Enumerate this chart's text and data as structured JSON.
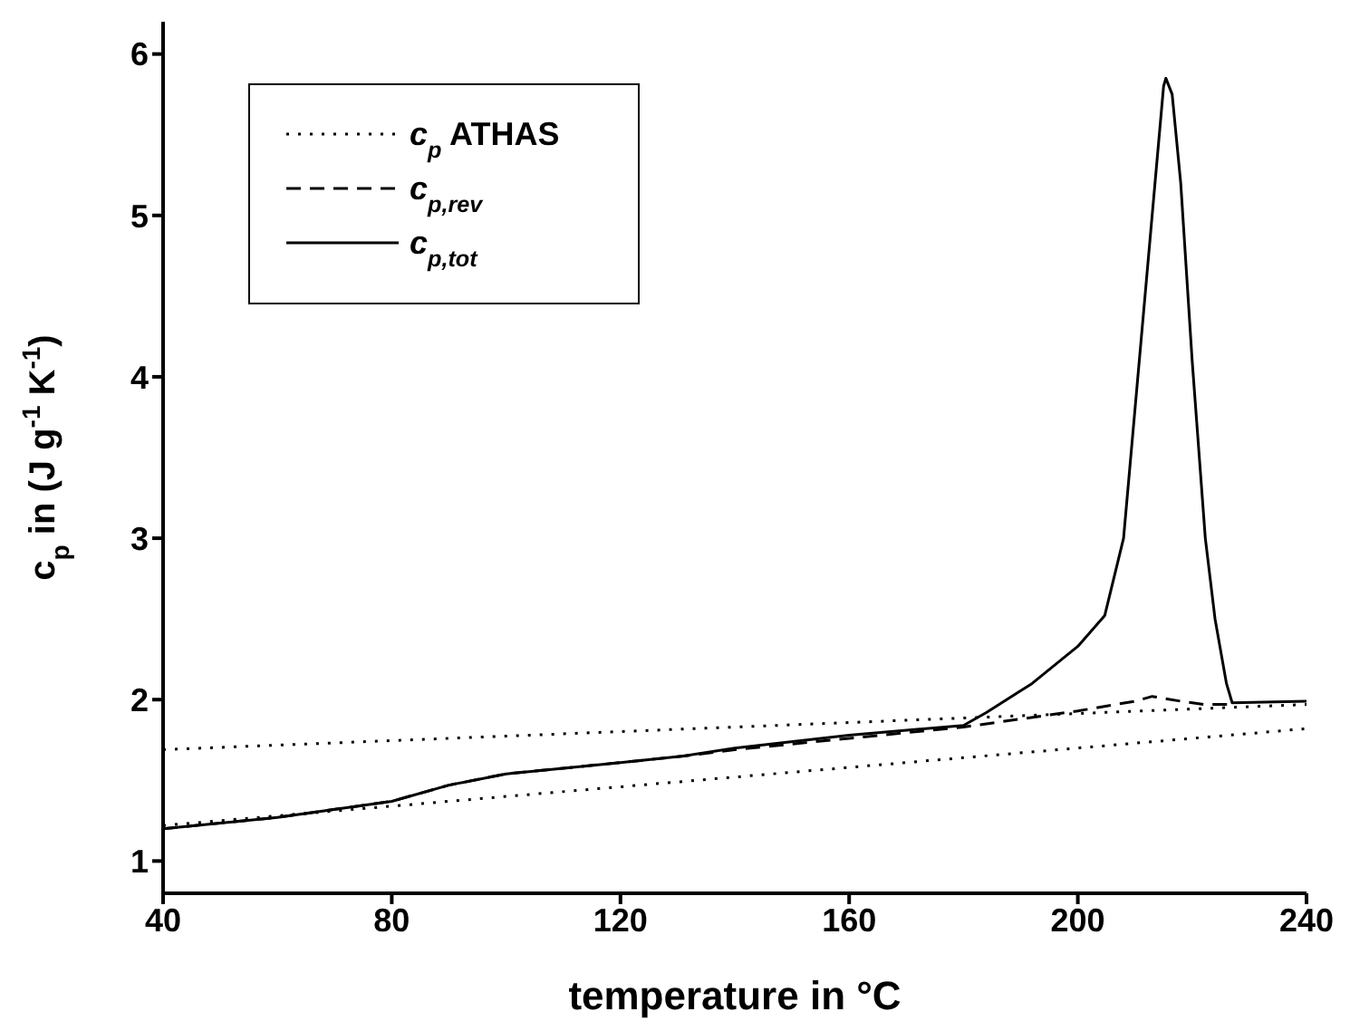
{
  "chart_data": {
    "type": "line",
    "xlabel": "temperature in °C",
    "ylabel": "c$_{p}$ in (J g$^{-1}$ K$^{-1}$)",
    "xlim": [
      40,
      240
    ],
    "xticks": [
      40,
      80,
      120,
      160,
      200,
      240
    ],
    "ylim": [
      0.8,
      6.2
    ],
    "yticks": [
      1,
      2,
      3,
      4,
      5,
      6
    ],
    "legend": "top left",
    "marker": "none",
    "series": [
      {
        "name": "c$_{p}$ ATHAS",
        "color": "#000000",
        "line_style": "dotted",
        "x": [
          40,
          240
        ],
        "values": [
          1.69,
          1.97
        ]
      },
      {
        "color": "#000000",
        "line_style": "dotted",
        "x": [
          40,
          240
        ],
        "values": [
          1.22,
          1.82
        ]
      },
      {
        "name": "c$_{p,rev}$",
        "color": "#000000",
        "line_style": "dashed",
        "x": [
          40,
          60,
          80,
          90,
          100,
          120,
          131,
          140,
          160,
          180,
          190,
          200,
          210,
          213,
          218,
          222,
          227
        ],
        "values": [
          1.2,
          1.27,
          1.37,
          1.47,
          1.54,
          1.61,
          1.65,
          1.69,
          1.76,
          1.83,
          1.88,
          1.93,
          1.99,
          2.02,
          1.99,
          1.97,
          1.97
        ]
      },
      {
        "name": "c$_{p,tot}$",
        "color": "#000000",
        "line_style": "solid",
        "x": [
          40,
          60,
          80,
          90,
          100,
          120,
          131,
          140,
          160,
          180,
          184,
          192,
          200,
          204.7,
          208,
          210,
          212,
          213.5,
          215,
          215.4,
          216.5,
          218,
          220,
          222.3,
          224,
          226,
          227,
          240
        ],
        "values": [
          1.2,
          1.27,
          1.37,
          1.47,
          1.54,
          1.61,
          1.65,
          1.7,
          1.78,
          1.84,
          1.92,
          2.1,
          2.33,
          2.52,
          3.0,
          3.8,
          4.6,
          5.2,
          5.8,
          5.85,
          5.75,
          5.2,
          4.1,
          3.0,
          2.5,
          2.1,
          1.98,
          1.99
        ]
      }
    ]
  }
}
